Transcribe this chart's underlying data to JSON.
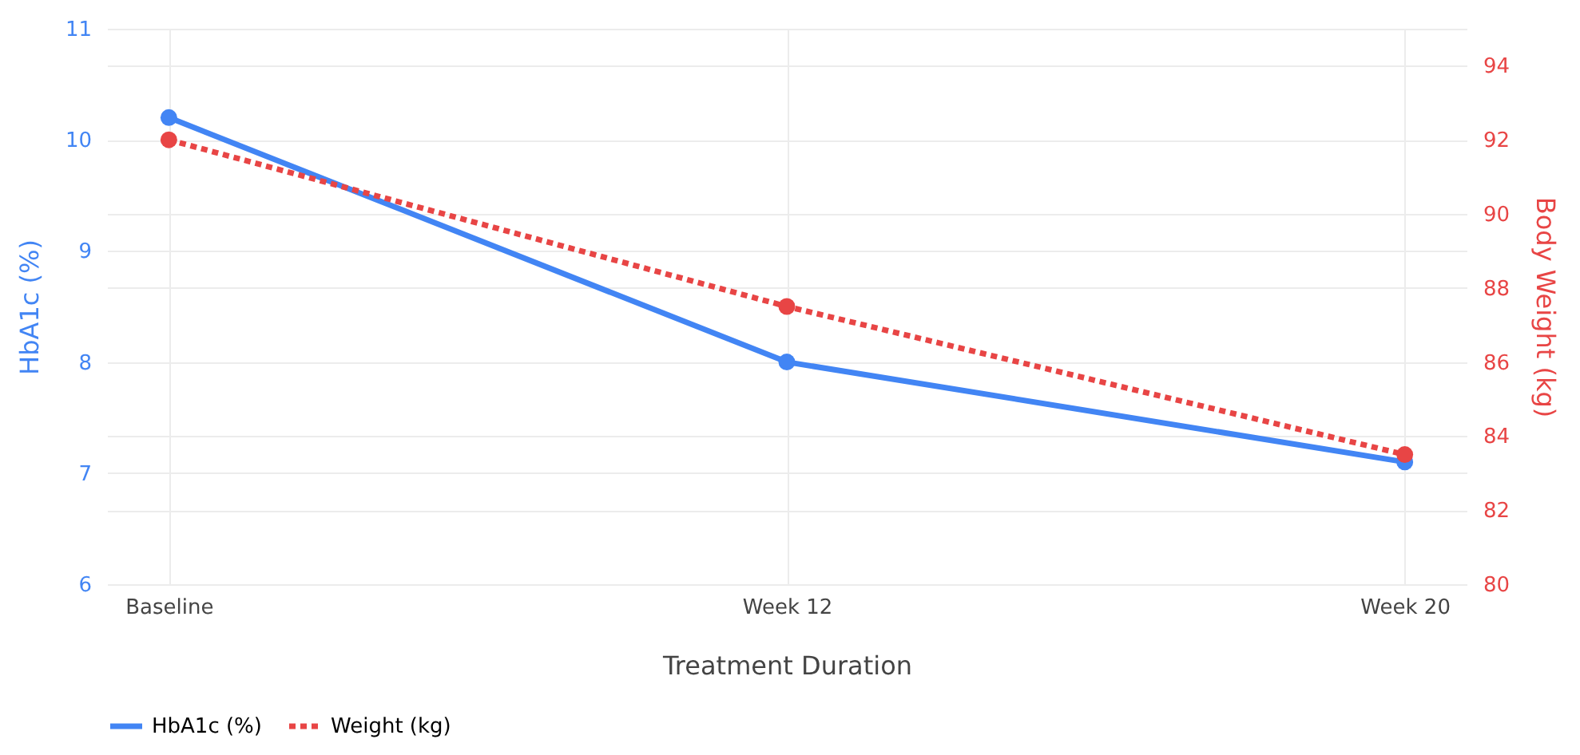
{
  "chart_data": {
    "type": "line",
    "xlabel": "Treatment Duration",
    "ylabel": "HbA1c (%)",
    "y2label": "Body Weight (kg)",
    "categories": [
      "Baseline",
      "Week 12",
      "Week 20"
    ],
    "ylim": [
      6,
      11
    ],
    "yticks": [
      6,
      7,
      8,
      9,
      10,
      11
    ],
    "y2lim": [
      80,
      95
    ],
    "y2ticks": [
      80,
      82,
      84,
      86,
      88,
      90,
      92,
      94
    ],
    "grid": true,
    "legend": "bottom",
    "marker": "circle",
    "series": [
      {
        "name": "HbA1c (%)",
        "color": "#4285f4",
        "values": [
          10.2,
          8.0,
          7.1
        ],
        "line_style": "solid"
      },
      {
        "name": "Weight (kg)",
        "color": "#e84545",
        "values": [
          92,
          87.5,
          83.5
        ],
        "axis": "y2",
        "line_style": "dotted"
      }
    ]
  }
}
